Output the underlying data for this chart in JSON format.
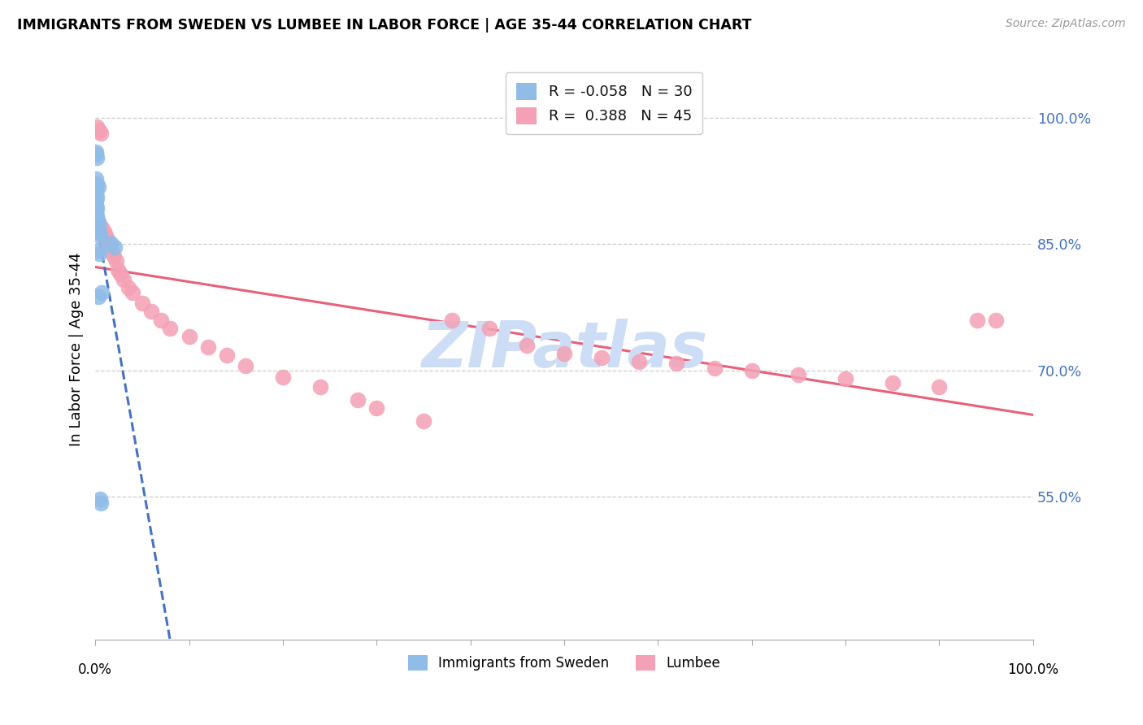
{
  "title": "IMMIGRANTS FROM SWEDEN VS LUMBEE IN LABOR FORCE | AGE 35-44 CORRELATION CHART",
  "source": "Source: ZipAtlas.com",
  "ylabel": "In Labor Force | Age 35-44",
  "legend_label1": "Immigrants from Sweden",
  "legend_label2": "Lumbee",
  "r1": "-0.058",
  "n1": "30",
  "r2": "0.388",
  "n2": "45",
  "color_sweden": "#90bce8",
  "color_lumbee": "#f4a0b5",
  "color_sweden_line": "#4472c4",
  "color_lumbee_line": "#e8607a",
  "watermark_color": "#ccddf5",
  "grid_color": "#cccccc",
  "xlim": [
    0.0,
    1.0
  ],
  "ylim": [
    0.38,
    1.07
  ],
  "yticks": [
    0.55,
    0.7,
    0.85,
    1.0
  ],
  "ytick_labels": [
    "55.0%",
    "70.0%",
    "85.0%",
    "100.0%"
  ],
  "sweden_x": [
    0.001,
    0.001,
    0.002,
    0.001,
    0.002,
    0.003,
    0.001,
    0.001,
    0.002,
    0.001,
    0.001,
    0.002,
    0.001,
    0.001,
    0.002,
    0.002,
    0.003,
    0.003,
    0.002,
    0.003,
    0.004,
    0.005,
    0.016,
    0.021,
    0.003,
    0.004,
    0.007,
    0.003,
    0.005,
    0.006
  ],
  "sweden_y": [
    0.96,
    0.957,
    0.953,
    0.928,
    0.922,
    0.918,
    0.914,
    0.91,
    0.906,
    0.902,
    0.896,
    0.893,
    0.888,
    0.886,
    0.883,
    0.879,
    0.877,
    0.874,
    0.871,
    0.868,
    0.864,
    0.86,
    0.851,
    0.847,
    0.843,
    0.839,
    0.792,
    0.788,
    0.547,
    0.542
  ],
  "lumbee_x": [
    0.002,
    0.003,
    0.004,
    0.006,
    0.007,
    0.009,
    0.011,
    0.013,
    0.015,
    0.017,
    0.02,
    0.022,
    0.024,
    0.027,
    0.03,
    0.035,
    0.04,
    0.05,
    0.06,
    0.07,
    0.08,
    0.1,
    0.12,
    0.14,
    0.16,
    0.2,
    0.24,
    0.28,
    0.3,
    0.35,
    0.38,
    0.42,
    0.46,
    0.5,
    0.54,
    0.58,
    0.62,
    0.66,
    0.7,
    0.75,
    0.8,
    0.85,
    0.9,
    0.94,
    0.96
  ],
  "lumbee_y": [
    0.99,
    0.986,
    0.985,
    0.982,
    0.87,
    0.865,
    0.86,
    0.855,
    0.85,
    0.842,
    0.836,
    0.83,
    0.82,
    0.815,
    0.808,
    0.798,
    0.792,
    0.78,
    0.77,
    0.76,
    0.75,
    0.74,
    0.728,
    0.718,
    0.705,
    0.692,
    0.68,
    0.665,
    0.655,
    0.64,
    0.76,
    0.75,
    0.73,
    0.72,
    0.715,
    0.71,
    0.708,
    0.703,
    0.7,
    0.695,
    0.69,
    0.685,
    0.68,
    0.76,
    0.76
  ]
}
